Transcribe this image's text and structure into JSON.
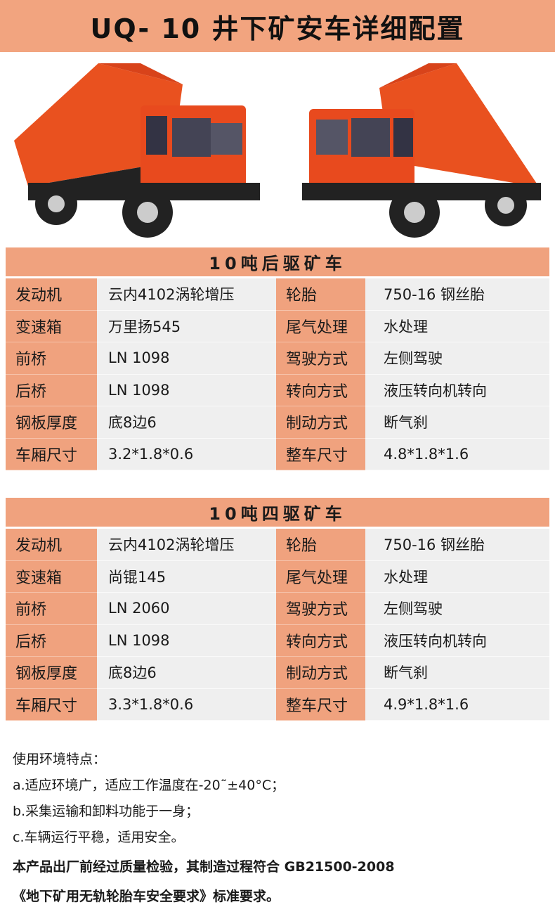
{
  "title": "UQ- 10 井下矿安车详细配置",
  "colors": {
    "accent": "#f2a47f",
    "truck_body": "#e8471f",
    "cell_bg": "#efefef"
  },
  "tables": [
    {
      "heading": "10吨后驱矿车",
      "rows": [
        [
          "发动机",
          "云内4102涡轮增压",
          "轮胎",
          "750-16 钢丝胎"
        ],
        [
          "变速箱",
          "万里扬545",
          "尾气处理",
          "水处理"
        ],
        [
          "前桥",
          "LN 1098",
          "驾驶方式",
          "左侧驾驶"
        ],
        [
          "后桥",
          "LN 1098",
          "转向方式",
          "液压转向机转向"
        ],
        [
          "钢板厚度",
          "底8边6",
          "制动方式",
          "断气刹"
        ],
        [
          "车厢尺寸",
          "3.2*1.8*0.6",
          "整车尺寸",
          "4.8*1.8*1.6"
        ]
      ]
    },
    {
      "heading": "10吨四驱矿车",
      "rows": [
        [
          "发动机",
          "云内4102涡轮增压",
          "轮胎",
          "750-16 钢丝胎"
        ],
        [
          "变速箱",
          "尚锟145",
          "尾气处理",
          "水处理"
        ],
        [
          "前桥",
          "LN 2060",
          "驾驶方式",
          "左侧驾驶"
        ],
        [
          "后桥",
          "LN 1098",
          "转向方式",
          "液压转向机转向"
        ],
        [
          "钢板厚度",
          "底8边6",
          "制动方式",
          "断气刹"
        ],
        [
          "车厢尺寸",
          "3.3*1.8*0.6",
          "整车尺寸",
          "4.9*1.8*1.6"
        ]
      ]
    }
  ],
  "notes": {
    "heading": "使用环境特点：",
    "items": [
      "a.适应环境广，适应工作温度在-20˜±40°C；",
      "b.采集运输和卸料功能于一身；",
      "c.车辆运行平稳，适用安全。"
    ],
    "standard_line1": "本产品出厂前经过质量检验，其制造过程符合 GB21500-2008",
    "standard_line2": "《地下矿用无轨轮胎车安全要求》标准要求。"
  }
}
